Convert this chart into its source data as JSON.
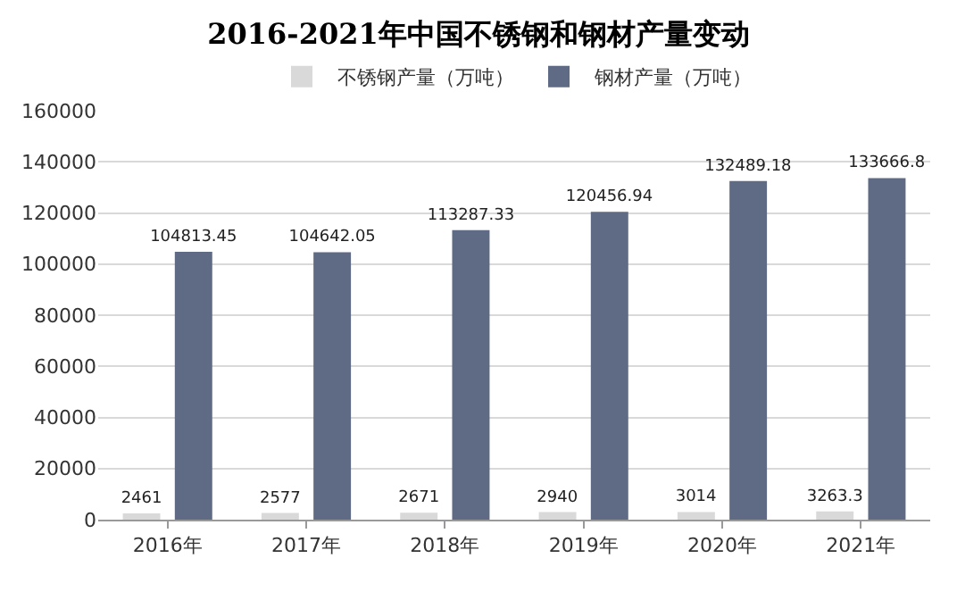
{
  "chart_data": {
    "type": "bar",
    "title": "2016-2021年中国不锈钢和钢材产量变动",
    "categories": [
      "2016年",
      "2017年",
      "2018年",
      "2019年",
      "2020年",
      "2021年"
    ],
    "series": [
      {
        "name": "不锈钢产量（万吨）",
        "color": "#d9d9d9",
        "values": [
          2461,
          2577,
          2671,
          2940,
          3014,
          3263.3
        ]
      },
      {
        "name": "钢材产量（万吨）",
        "color": "#5f6a85",
        "values": [
          104813.45,
          104642.05,
          113287.33,
          120456.94,
          132489.18,
          133666.8
        ]
      }
    ],
    "ylim": [
      0,
      160000
    ],
    "yticks": [
      0,
      20000,
      40000,
      60000,
      80000,
      100000,
      120000,
      140000,
      160000
    ],
    "grid": "y",
    "legend": "top",
    "data_labels": true
  }
}
